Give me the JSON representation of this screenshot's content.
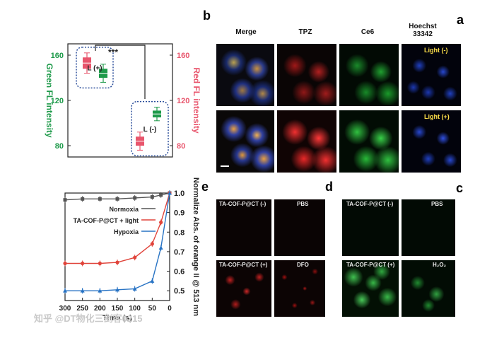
{
  "panels": {
    "a": "a",
    "b": "b",
    "c": "c",
    "d": "d",
    "e": "e"
  },
  "headers": {
    "hoechst": "Hoechst 33342",
    "ce6": "Ce6",
    "tpz": "TPZ",
    "merge": "Merge"
  },
  "row_tags": {
    "light_off": "Light (-)",
    "light_on": "Light (+)"
  },
  "c_tags": {
    "pbs": "PBS",
    "cof_minus": "TA-COF-P@CT (-)",
    "h2o2": "H₂O₂",
    "cof_plus": "TA-COF-P@CT (+)"
  },
  "d_tags": {
    "pbs": "PBS",
    "cof_minus": "TA-COF-P@CT (-)",
    "dfo": "DFO",
    "cof_plus": "TA-COF-P@CT (+)"
  },
  "watermark": "知乎 @DT物化三剑客0215",
  "colors": {
    "red": "#e8556c",
    "green": "#1e9a4a",
    "dotted": "#2a4d9a",
    "black": "#222",
    "normoxia": "#555",
    "light": "#e0433a",
    "hypoxia": "#2873c4"
  },
  "chart_data": [
    {
      "type": "box",
      "title": "",
      "ylabel_left": "Red FL intensity",
      "ylabel_right": "Green FL intensity",
      "ylim": [
        70,
        170
      ],
      "yticks": [
        80,
        120,
        160
      ],
      "groups": [
        {
          "label": "L (+)",
          "red": {
            "low": 144,
            "q1": 148,
            "median": 153,
            "q3": 158,
            "high": 162
          },
          "green": {
            "low": 136,
            "q1": 140,
            "median": 144,
            "q3": 148,
            "high": 152
          }
        },
        {
          "label": "L (-)",
          "red": {
            "low": 76,
            "q1": 80,
            "median": 84,
            "q3": 88,
            "high": 92
          },
          "green": {
            "low": 102,
            "q1": 105,
            "median": 108,
            "q3": 111,
            "high": 114
          }
        }
      ],
      "significance": "***"
    },
    {
      "type": "line",
      "xlabel": "Time (s)",
      "ylabel": "Normalize Abs. of orange II @ 513 nm",
      "xlim": [
        0,
        300
      ],
      "ylim": [
        0.45,
        1.0
      ],
      "xticks": [
        0,
        50,
        100,
        150,
        200,
        250,
        300
      ],
      "yticks": [
        0.5,
        0.6,
        0.7,
        0.8,
        0.9,
        1.0
      ],
      "series": [
        {
          "name": "Normoxia",
          "x": [
            0,
            25,
            50,
            100,
            150,
            200,
            250,
            300
          ],
          "y": [
            1.0,
            0.99,
            0.98,
            0.975,
            0.97,
            0.97,
            0.97,
            0.965
          ]
        },
        {
          "name": "TA-COF-P@CT + light",
          "x": [
            0,
            25,
            50,
            100,
            150,
            200,
            250,
            300
          ],
          "y": [
            1.0,
            0.85,
            0.74,
            0.67,
            0.645,
            0.64,
            0.64,
            0.64
          ]
        },
        {
          "name": "Hypoxia",
          "x": [
            0,
            25,
            50,
            100,
            150,
            200,
            250,
            300
          ],
          "y": [
            1.0,
            0.72,
            0.55,
            0.51,
            0.505,
            0.5,
            0.5,
            0.5
          ]
        }
      ]
    }
  ]
}
